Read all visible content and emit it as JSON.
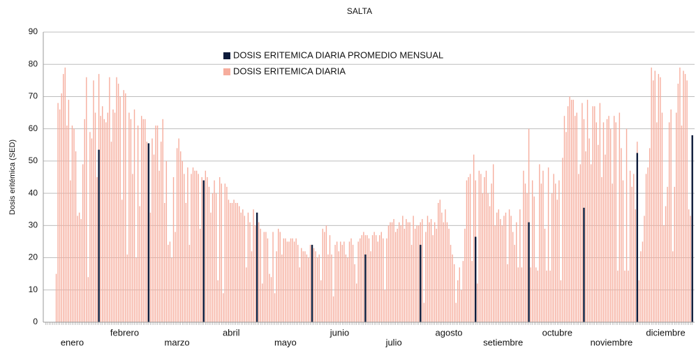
{
  "chart_data": {
    "type": "bar",
    "title": "SALTA",
    "y_label": "Dosis eritémica (SED)",
    "categories": [
      "enero",
      "febrero",
      "marzo",
      "abril",
      "mayo",
      "junio",
      "julio",
      "agosto",
      "setiembre",
      "octubre",
      "noviembre",
      "diciembre"
    ],
    "ylim": [
      0,
      90
    ],
    "yticks": [
      0,
      10,
      20,
      30,
      40,
      50,
      60,
      70,
      80,
      90
    ],
    "grid": true,
    "series": [
      {
        "name": "DOSIS ERITEMICA DIARIA PROMEDIO MENSUAL",
        "color": "#0d1b3a",
        "values": [
          53.5,
          55.5,
          44,
          34,
          24,
          21,
          24,
          26.5,
          31,
          35.5,
          52.5,
          58
        ]
      },
      {
        "name": "DOSIS ERITEMICA DIARIA",
        "color": "#f6ad9d",
        "values": [
          [
            null,
            null,
            null,
            null,
            null,
            null,
            15,
            68,
            66,
            71,
            77,
            79,
            61,
            69,
            44,
            61,
            60,
            53,
            33,
            34,
            32,
            49,
            63,
            76,
            14,
            59,
            57,
            75,
            65,
            45,
            77
          ],
          [
            64,
            67,
            63,
            62,
            65,
            76,
            56,
            66,
            65,
            76,
            74,
            70,
            38,
            72,
            71,
            21,
            65,
            63,
            46,
            66,
            20,
            61,
            36,
            64,
            63,
            63,
            56,
            52
          ],
          [
            34,
            57,
            52,
            61,
            61,
            47,
            56,
            63,
            37,
            50,
            24,
            25,
            20,
            45,
            28,
            54,
            57,
            53,
            50,
            46,
            37,
            48,
            24,
            46,
            48,
            47,
            47,
            46,
            29,
            45,
            20
          ],
          [
            47,
            45,
            42,
            34,
            40,
            44,
            40,
            13,
            45,
            43,
            9,
            43,
            42,
            38,
            37,
            37,
            38,
            37,
            37,
            36,
            34,
            35,
            33,
            17,
            34,
            31,
            22,
            35,
            30,
            32
          ],
          [
            31,
            29,
            12,
            28,
            28,
            26,
            15,
            14,
            28,
            9,
            22,
            29,
            28,
            21,
            26,
            26,
            25,
            25,
            26,
            26,
            25,
            26,
            24,
            17,
            23,
            22,
            22,
            21,
            20,
            24,
            23
          ],
          [
            23,
            22,
            20,
            21,
            13,
            29,
            28,
            30,
            21,
            27,
            21,
            8,
            24,
            25,
            22,
            25,
            24,
            25,
            21,
            20,
            25,
            26,
            24,
            18,
            12,
            25,
            26,
            27,
            28,
            27
          ],
          [
            27,
            26,
            22,
            27,
            28,
            27,
            25,
            27,
            28,
            26,
            10,
            26,
            30,
            31,
            31,
            32,
            28,
            29,
            31,
            30,
            33,
            29,
            32,
            31,
            31,
            24,
            33,
            29,
            30,
            30,
            31
          ],
          [
            32,
            6,
            28,
            33,
            31,
            32,
            27,
            31,
            29,
            37,
            38,
            34,
            31,
            35,
            31,
            29,
            24,
            21,
            18,
            6,
            13,
            17,
            10,
            19,
            29,
            44,
            45,
            46,
            19,
            52,
            44
          ],
          [
            12,
            47,
            46,
            40,
            45,
            47,
            40,
            36,
            43,
            49,
            30,
            34,
            35,
            32,
            30,
            33,
            34,
            18,
            35,
            33,
            28,
            24,
            31,
            17,
            35,
            17,
            47,
            43,
            40,
            60
          ],
          [
            17,
            44,
            39,
            17,
            16,
            49,
            43,
            47,
            29,
            16,
            48,
            16,
            40,
            46,
            43,
            38,
            44,
            13,
            51,
            64,
            59,
            67,
            70,
            69,
            69,
            64,
            65,
            46,
            49,
            68,
            63
          ],
          [
            53,
            69,
            57,
            49,
            67,
            67,
            62,
            55,
            68,
            45,
            62,
            52,
            63,
            64,
            60,
            43,
            64,
            62,
            16,
            65,
            54,
            44,
            16,
            60,
            16,
            47,
            42,
            46,
            35,
            56
          ],
          [
            13,
            22,
            25,
            33,
            46,
            48,
            54,
            79,
            75,
            78,
            62,
            77,
            76,
            65,
            30,
            36,
            42,
            62,
            66,
            22,
            42,
            65,
            74,
            79,
            61,
            78,
            77,
            75,
            35,
            33,
            44
          ]
        ]
      }
    ]
  }
}
